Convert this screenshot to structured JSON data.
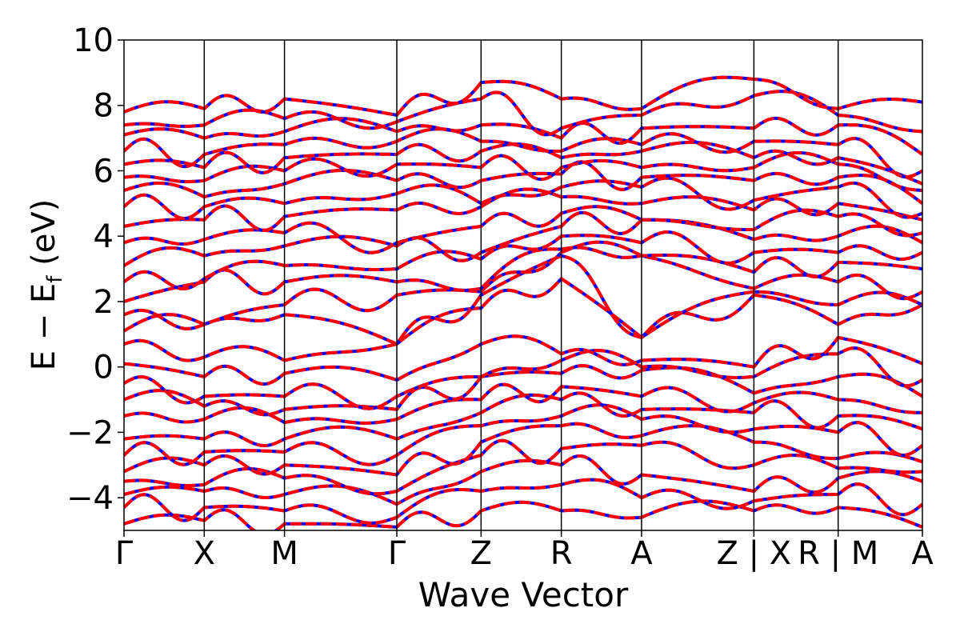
{
  "chart_data": {
    "type": "line",
    "title": "",
    "xlabel": "Wave Vector",
    "ylabel_main": "E − E",
    "ylabel_sub": "f",
    "ylabel_unit": " (eV)",
    "ylim": [
      -5,
      10
    ],
    "yticks": [
      -4,
      -2,
      0,
      2,
      4,
      6,
      8,
      10
    ],
    "ytick_labels": [
      "−4",
      "−2",
      "0",
      "2",
      "4",
      "6",
      "8",
      "10"
    ],
    "kpath_labels": [
      "Γ",
      "X",
      "M",
      "Γ",
      "Z",
      "R",
      "A",
      "Z | X",
      "R | M",
      "A"
    ],
    "kpath_positions": [
      0,
      1,
      2,
      3.4,
      4.45,
      5.45,
      6.45,
      7.85,
      8.9,
      9.95
    ],
    "kpath_range": [
      0,
      9.95
    ],
    "grid": false,
    "legend": "none",
    "series": [
      {
        "color": "#0000ff",
        "style": "solid"
      },
      {
        "color": "#ff0000",
        "style": "dashed"
      }
    ],
    "segment_band_energies": [
      [
        -4.8,
        -4.3,
        -3.9,
        -3.5,
        -3.2,
        -2.7,
        -2.2,
        -1.5,
        -1.0,
        -0.5,
        0.1,
        0.7,
        1.1,
        1.6,
        2.0,
        2.6,
        3.1,
        3.8,
        4.3,
        4.9,
        5.4,
        5.8,
        6.2,
        6.6,
        7.1,
        7.4,
        7.8
      ],
      [
        -4.7,
        -4.3,
        -3.8,
        -3.6,
        -3.0,
        -2.6,
        -2.2,
        -1.6,
        -1.2,
        -0.9,
        -0.3,
        0.3,
        1.3,
        1.3,
        2.6,
        2.7,
        3.4,
        3.9,
        4.5,
        4.9,
        5.2,
        5.7,
        6.1,
        6.5,
        7.0,
        7.4,
        7.9
      ],
      [
        -4.8,
        -4.4,
        -3.9,
        -3.4,
        -3.0,
        -2.6,
        -2.2,
        -1.7,
        -1.3,
        -0.9,
        -0.2,
        0.2,
        1.6,
        1.9,
        2.6,
        3.1,
        3.7,
        4.1,
        4.6,
        5.0,
        5.6,
        6.0,
        6.4,
        6.8,
        7.2,
        7.6,
        8.2
      ],
      [
        -4.9,
        -4.6,
        -4.2,
        -3.8,
        -3.3,
        -2.7,
        -2.2,
        -1.6,
        -1.3,
        -0.9,
        -0.4,
        0.7,
        0.7,
        2.2,
        2.6,
        3.0,
        3.7,
        3.8,
        4.8,
        5.3,
        5.7,
        6.2,
        6.5,
        6.9,
        7.2,
        7.5,
        7.7
      ],
      [
        -4.4,
        -3.8,
        -3.2,
        -2.7,
        -2.3,
        -1.8,
        -1.4,
        -1.0,
        -0.3,
        -0.3,
        0.7,
        1.8,
        2.2,
        2.3,
        2.4,
        3.3,
        3.5,
        4.3,
        4.9,
        5.0,
        5.7,
        6.1,
        6.6,
        6.9,
        7.4,
        8.2,
        8.7
      ],
      [
        -4.4,
        -3.6,
        -3.0,
        -2.5,
        -1.8,
        -1.5,
        -1.0,
        -0.6,
        -0.2,
        0.2,
        0.4,
        2.7,
        3.4,
        3.5,
        3.6,
        4.0,
        4.3,
        4.7,
        5.2,
        5.5,
        5.9,
        6.1,
        6.4,
        6.6,
        7.0,
        7.3,
        8.2
      ],
      [
        -4.6,
        -4.0,
        -3.3,
        -2.4,
        -2.1,
        -1.6,
        -1.3,
        -0.9,
        -0.1,
        0.0,
        0.2,
        0.9,
        0.9,
        3.4,
        3.4,
        3.8,
        4.5,
        4.5,
        5.0,
        5.5,
        5.8,
        6.1,
        6.6,
        6.8,
        7.3,
        7.7,
        7.9
      ],
      [
        -4.4,
        -4.1,
        -3.8,
        -3.0,
        -2.3,
        -1.9,
        -1.4,
        -1.1,
        -0.8,
        -0.3,
        0.0,
        2.2,
        2.3,
        2.4,
        2.9,
        3.5,
        3.9,
        4.2,
        4.8,
        5.1,
        5.7,
        6.1,
        6.4,
        6.9,
        7.3,
        8.3,
        8.8
      ],
      [
        -4.3,
        -3.9,
        -3.4,
        -3.1,
        -2.8,
        -2.0,
        -1.5,
        -1.0,
        -0.3,
        0.4,
        0.9,
        1.3,
        1.9,
        2.6,
        3.2,
        3.5,
        4.0,
        4.6,
        5.0,
        5.5,
        5.8,
        6.2,
        6.4,
        6.8,
        7.4,
        7.7,
        7.9
      ],
      [
        -4.9,
        -4.2,
        -3.5,
        -3.2,
        -2.9,
        -2.4,
        -1.9,
        -1.4,
        -0.9,
        -0.4,
        0.1,
        1.9,
        1.9,
        2.3,
        3.0,
        3.5,
        3.8,
        4.1,
        4.5,
        4.7,
        5.0,
        5.4,
        5.6,
        6.0,
        6.5,
        7.2,
        8.1
      ],
      [
        -4.7,
        -4.0,
        -3.5,
        -3.2,
        -2.8,
        -2.5,
        -2.0,
        -1.6,
        -1.0,
        -0.5,
        0.1,
        0.9,
        1.0,
        3.4,
        3.5,
        3.8,
        4.2,
        4.6,
        5.0,
        5.2,
        5.4,
        5.7,
        6.2,
        6.5,
        6.8,
        7.5,
        7.9
      ]
    ]
  }
}
